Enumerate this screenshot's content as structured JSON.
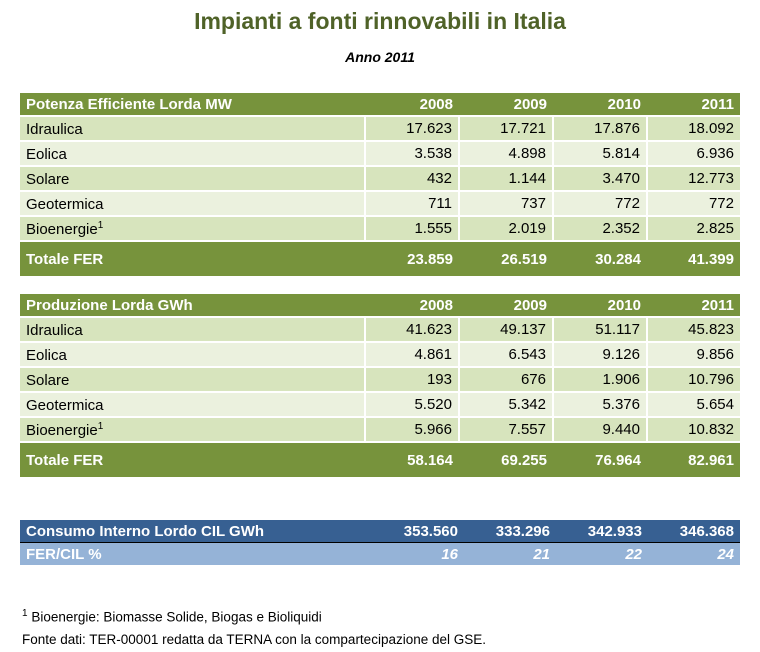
{
  "title": "Impianti a fonti rinnovabili in Italia",
  "subtitle": "Anno 2011",
  "years": [
    "2008",
    "2009",
    "2010",
    "2011"
  ],
  "potenza": {
    "header": "Potenza Efficiente Lorda MW",
    "rows": [
      {
        "label": "Idraulica",
        "sup": "",
        "values": [
          "17.623",
          "17.721",
          "17.876",
          "18.092"
        ]
      },
      {
        "label": "Eolica",
        "sup": "",
        "values": [
          "3.538",
          "4.898",
          "5.814",
          "6.936"
        ]
      },
      {
        "label": "Solare",
        "sup": "",
        "values": [
          "432",
          "1.144",
          "3.470",
          "12.773"
        ]
      },
      {
        "label": "Geotermica",
        "sup": "",
        "values": [
          "711",
          "737",
          "772",
          "772"
        ]
      },
      {
        "label": "Bioenergie",
        "sup": "1",
        "values": [
          "1.555",
          "2.019",
          "2.352",
          "2.825"
        ]
      }
    ],
    "total": {
      "label": "Totale FER",
      "values": [
        "23.859",
        "26.519",
        "30.284",
        "41.399"
      ]
    }
  },
  "produzione": {
    "header": "Produzione Lorda GWh",
    "rows": [
      {
        "label": "Idraulica",
        "sup": "",
        "values": [
          "41.623",
          "49.137",
          "51.117",
          "45.823"
        ]
      },
      {
        "label": "Eolica",
        "sup": "",
        "values": [
          "4.861",
          "6.543",
          "9.126",
          "9.856"
        ]
      },
      {
        "label": "Solare",
        "sup": "",
        "values": [
          "193",
          "676",
          "1.906",
          "10.796"
        ]
      },
      {
        "label": "Geotermica",
        "sup": "",
        "values": [
          "5.520",
          "5.342",
          "5.376",
          "5.654"
        ]
      },
      {
        "label": "Bioenergie",
        "sup": "1",
        "values": [
          "5.966",
          "7.557",
          "9.440",
          "10.832"
        ]
      }
    ],
    "total": {
      "label": "Totale FER",
      "values": [
        "58.164",
        "69.255",
        "76.964",
        "82.961"
      ]
    }
  },
  "consumo": {
    "label": "Consumo Interno Lordo CIL GWh",
    "values": [
      "353.560",
      "333.296",
      "342.933",
      "346.368"
    ]
  },
  "fercil": {
    "label": "FER/CIL %",
    "values": [
      "16",
      "21",
      "22",
      "24"
    ]
  },
  "footnotes": {
    "sup": "1",
    "note": "Bioenergie: Biomasse Solide, Biogas e Bioliquidi",
    "source": "Fonte dati: TER-00001 redatta da TERNA con la compartecipazione del GSE."
  },
  "colors": {
    "green": "#77933c",
    "row_dark": "#d7e4bd",
    "row_light": "#ebf1de",
    "blue": "#376092",
    "light_blue": "#95b3d7",
    "title": "#4f6228"
  }
}
